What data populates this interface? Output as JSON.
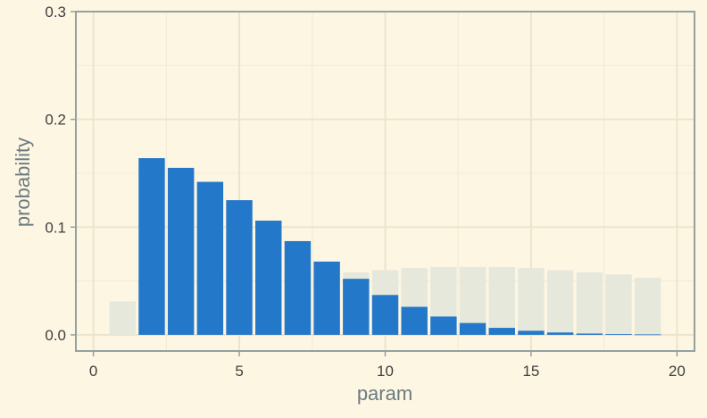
{
  "chart_data": {
    "type": "bar",
    "xlabel": "param",
    "ylabel": "probability",
    "xlim": [
      -0.6,
      20.6
    ],
    "ylim": [
      -0.015,
      0.3
    ],
    "x_ticks": [
      0,
      5,
      10,
      15,
      20
    ],
    "x_tick_labels": [
      "0",
      "5",
      "10",
      "15",
      "20"
    ],
    "y_ticks": [
      0.0,
      0.1,
      0.2,
      0.3
    ],
    "y_tick_labels": [
      "0.0",
      "0.1",
      "0.2",
      "0.3"
    ],
    "grid": true,
    "legend": "none",
    "colors": {
      "background": "#fdf6e3",
      "panel_border": "#93a1a1",
      "grid_major": "#ece5cc",
      "grid_minor": "#f3ecd6",
      "prior_fill": "#e6e8dc",
      "posterior_fill": "#2478c9"
    },
    "series": [
      {
        "x": [
          1,
          2,
          3,
          4,
          5,
          6,
          7,
          8,
          9,
          10,
          11,
          12,
          13,
          14,
          15,
          16,
          17,
          18,
          19
        ],
        "values": [
          0.031,
          0.05,
          0.054,
          0.057,
          0.059,
          0.061,
          0.062,
          0.062,
          0.058,
          0.06,
          0.062,
          0.063,
          0.063,
          0.063,
          0.062,
          0.06,
          0.058,
          0.056,
          0.053
        ]
      },
      {
        "x": [
          2,
          3,
          4,
          5,
          6,
          7,
          8,
          9,
          10,
          11,
          12,
          13,
          14,
          15,
          16,
          17,
          18,
          19
        ],
        "values": [
          0.164,
          0.155,
          0.142,
          0.125,
          0.106,
          0.087,
          0.068,
          0.052,
          0.037,
          0.026,
          0.017,
          0.011,
          0.0065,
          0.0038,
          0.0022,
          0.0012,
          0.0007,
          0.0004
        ]
      }
    ]
  }
}
